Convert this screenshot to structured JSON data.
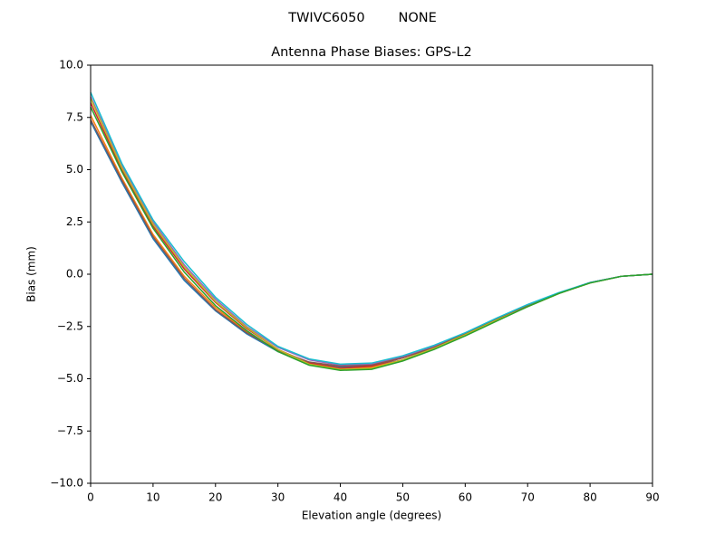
{
  "chart_data": {
    "type": "line",
    "suptitle": "TWIVC6050        NONE",
    "title": "Antenna Phase Biases: GPS-L2",
    "xlabel": "Elevation angle (degrees)",
    "ylabel": "Bias (mm)",
    "x": [
      0,
      5,
      10,
      15,
      20,
      25,
      30,
      35,
      40,
      45,
      50,
      55,
      60,
      65,
      70,
      75,
      80,
      85,
      90
    ],
    "xlim": [
      0,
      90
    ],
    "xticks": [
      0,
      10,
      20,
      30,
      40,
      50,
      60,
      70,
      80,
      90
    ],
    "ylim": [
      -10,
      10
    ],
    "yticks": [
      {
        "value": -10,
        "label": "−10.0"
      },
      {
        "value": -7.5,
        "label": "−7.5"
      },
      {
        "value": -5,
        "label": "−5.0"
      },
      {
        "value": -2.5,
        "label": "−2.5"
      },
      {
        "value": 0,
        "label": "0.0"
      },
      2.5,
      {
        "value": 5,
        "label": "5.0"
      },
      7.5,
      {
        "value": 10,
        "label": "10.0"
      }
    ],
    "grid": false,
    "series": [
      {
        "color": "#1f77b4",
        "values": [
          7.3,
          4.4,
          1.7,
          -0.3,
          -1.75,
          -2.85,
          -3.7,
          -4.25,
          -4.45,
          -4.4,
          -4.1,
          -3.55,
          -2.9,
          -2.2,
          -1.55,
          -0.92,
          -0.42,
          -0.1,
          0.0
        ]
      },
      {
        "color": "#ff7f0e",
        "values": [
          7.6,
          4.6,
          1.9,
          -0.1,
          -1.6,
          -2.75,
          -3.65,
          -4.25,
          -4.5,
          -4.45,
          -4.1,
          -3.55,
          -2.9,
          -2.2,
          -1.55,
          -0.92,
          -0.42,
          -0.1,
          0.0
        ]
      },
      {
        "color": "#d62728",
        "values": [
          8.2,
          5.0,
          2.3,
          0.25,
          -1.35,
          -2.6,
          -3.6,
          -4.25,
          -4.5,
          -4.4,
          -4.0,
          -3.5,
          -2.85,
          -2.15,
          -1.5,
          -0.9,
          -0.4,
          -0.1,
          0.0
        ]
      },
      {
        "color": "#9467bd",
        "values": [
          8.5,
          5.2,
          2.5,
          0.45,
          -1.2,
          -2.5,
          -3.5,
          -4.1,
          -4.35,
          -4.3,
          -3.95,
          -3.45,
          -2.85,
          -2.15,
          -1.5,
          -0.9,
          -0.4,
          -0.1,
          0.0
        ]
      },
      {
        "color": "#8c564b",
        "values": [
          7.4,
          4.5,
          1.8,
          -0.2,
          -1.7,
          -2.8,
          -3.65,
          -4.2,
          -4.4,
          -4.35,
          -4.0,
          -3.5,
          -2.85,
          -2.15,
          -1.5,
          -0.9,
          -0.4,
          -0.1,
          0.0
        ]
      },
      {
        "color": "#bcbd22",
        "values": [
          8.4,
          5.1,
          2.4,
          0.35,
          -1.3,
          -2.55,
          -3.6,
          -4.3,
          -4.55,
          -4.5,
          -4.1,
          -3.55,
          -2.9,
          -2.2,
          -1.55,
          -0.92,
          -0.42,
          -0.1,
          0.0
        ]
      },
      {
        "color": "#17becf",
        "values": [
          8.7,
          5.3,
          2.6,
          0.6,
          -1.1,
          -2.4,
          -3.45,
          -4.05,
          -4.3,
          -4.25,
          -3.9,
          -3.4,
          -2.8,
          -2.1,
          -1.45,
          -0.88,
          -0.4,
          -0.1,
          0.0
        ]
      },
      {
        "color": "#2ca02c",
        "values": [
          8.0,
          4.9,
          2.2,
          0.1,
          -1.5,
          -2.7,
          -3.7,
          -4.35,
          -4.6,
          -4.55,
          -4.15,
          -3.6,
          -2.95,
          -2.25,
          -1.55,
          -0.92,
          -0.42,
          -0.1,
          0.0
        ]
      }
    ]
  }
}
